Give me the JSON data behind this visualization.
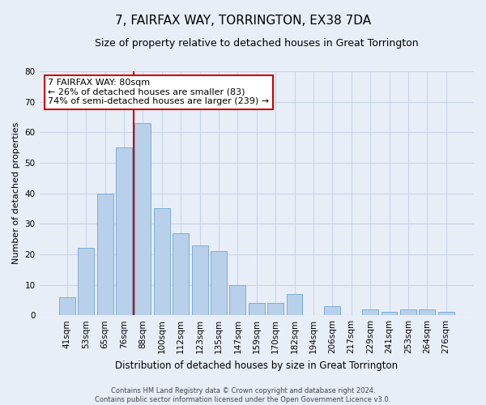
{
  "title": "7, FAIRFAX WAY, TORRINGTON, EX38 7DA",
  "subtitle": "Size of property relative to detached houses in Great Torrington",
  "xlabel": "Distribution of detached houses by size in Great Torrington",
  "ylabel": "Number of detached properties",
  "footer_line1": "Contains HM Land Registry data © Crown copyright and database right 2024.",
  "footer_line2": "Contains public sector information licensed under the Open Government Licence v3.0.",
  "categories": [
    "41sqm",
    "53sqm",
    "65sqm",
    "76sqm",
    "88sqm",
    "100sqm",
    "112sqm",
    "123sqm",
    "135sqm",
    "147sqm",
    "159sqm",
    "170sqm",
    "182sqm",
    "194sqm",
    "206sqm",
    "217sqm",
    "229sqm",
    "241sqm",
    "253sqm",
    "264sqm",
    "276sqm"
  ],
  "values": [
    6,
    22,
    40,
    55,
    63,
    35,
    27,
    23,
    21,
    10,
    4,
    4,
    7,
    0,
    3,
    0,
    2,
    1,
    2,
    2,
    1
  ],
  "bar_color": "#b8d0ea",
  "bar_edge_color": "#7aaed4",
  "vline_color": "#cc0000",
  "vline_x_index": 4,
  "annotation_text": "7 FAIRFAX WAY: 80sqm\n← 26% of detached houses are smaller (83)\n74% of semi-detached houses are larger (239) →",
  "annotation_box_facecolor": "white",
  "annotation_box_edgecolor": "#cc0000",
  "ylim": [
    0,
    80
  ],
  "yticks": [
    0,
    10,
    20,
    30,
    40,
    50,
    60,
    70,
    80
  ],
  "grid_color": "#c8d4e8",
  "background_color": "#e8eef8",
  "title_fontsize": 11,
  "subtitle_fontsize": 9,
  "tick_fontsize": 7.5,
  "ylabel_fontsize": 8,
  "xlabel_fontsize": 8.5,
  "annotation_fontsize": 8,
  "footer_fontsize": 6
}
